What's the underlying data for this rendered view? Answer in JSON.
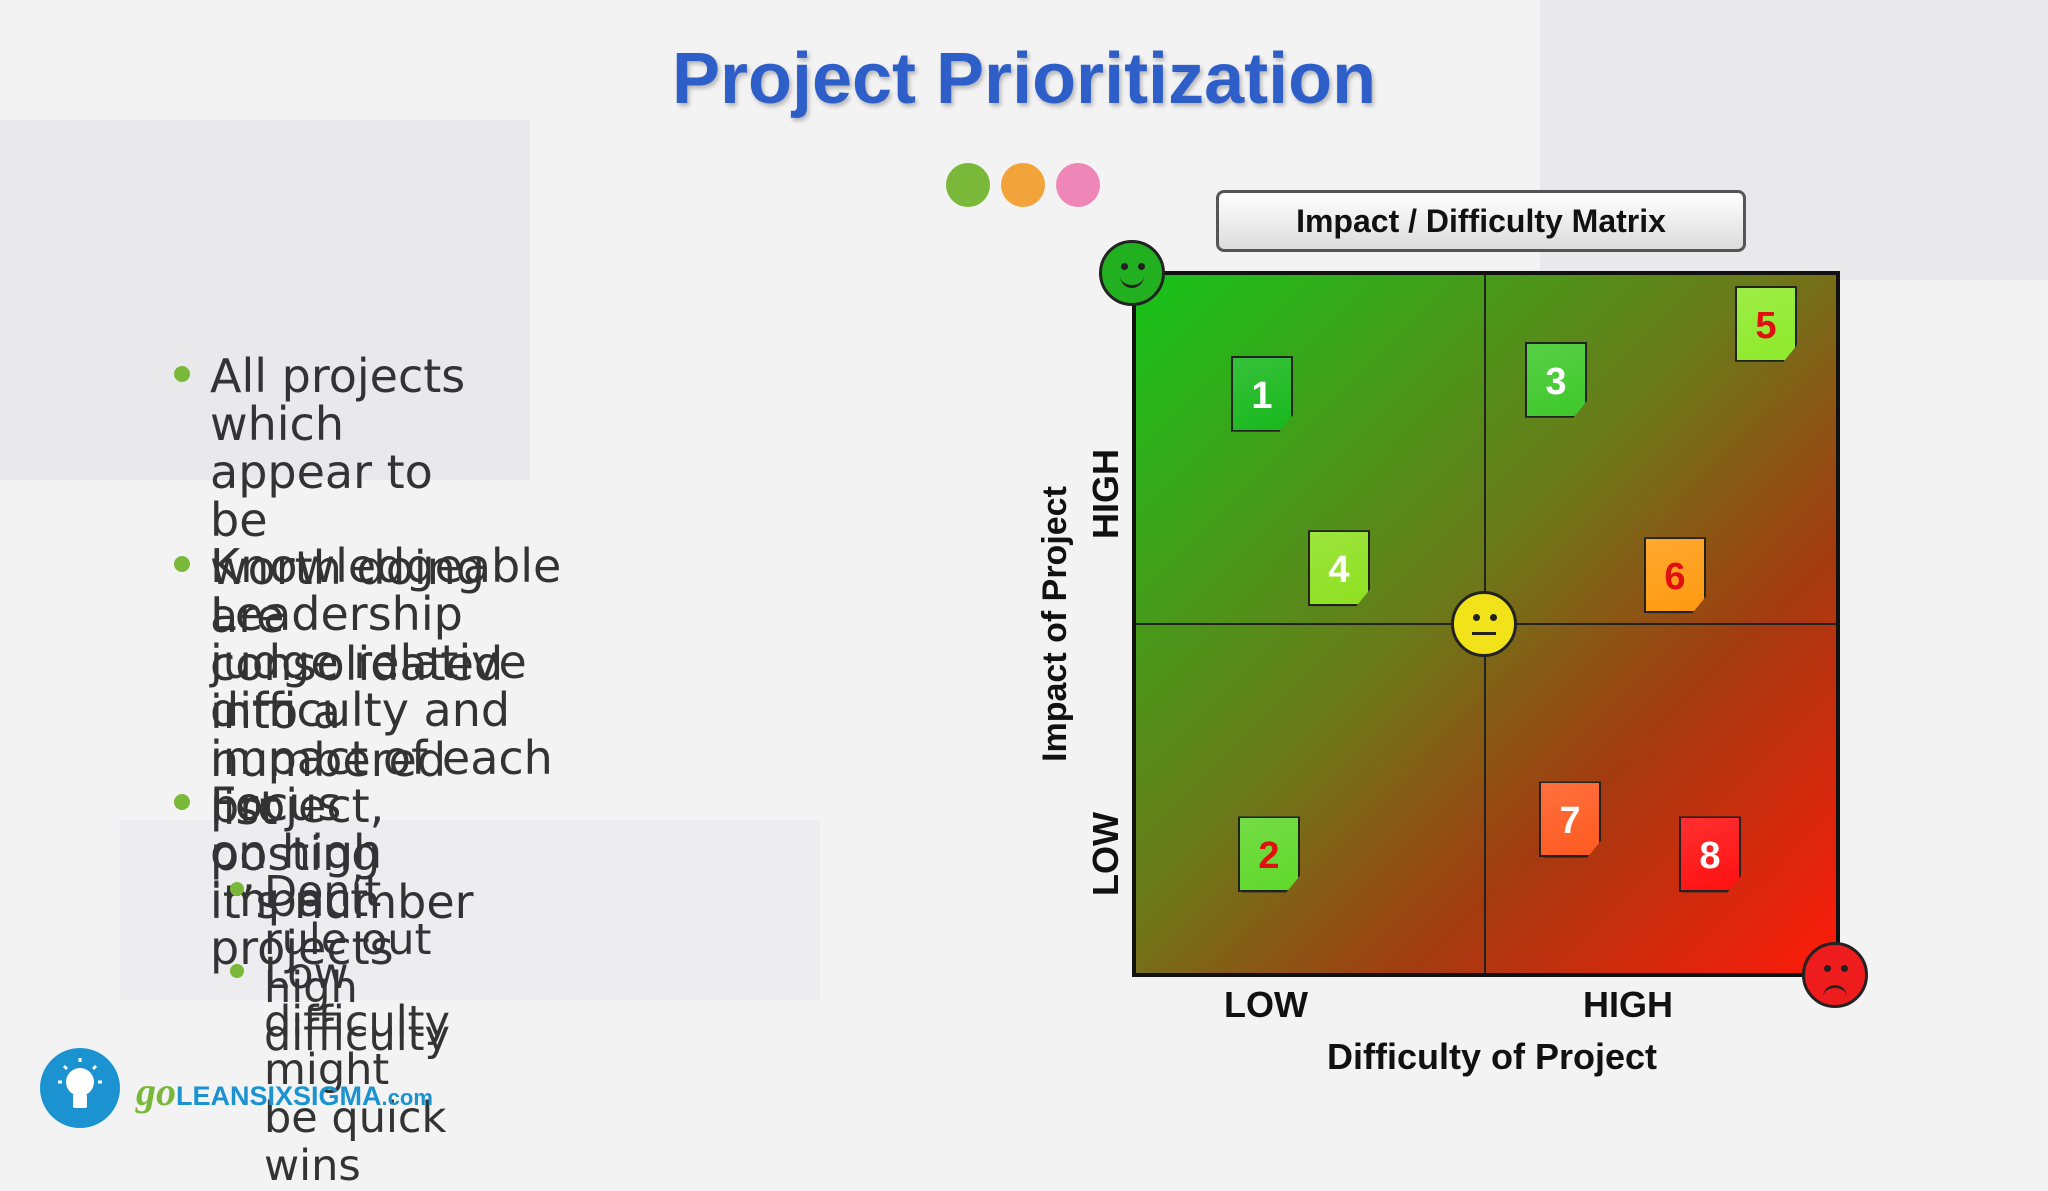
{
  "slide": {
    "title": "Project Prioritization",
    "dot_colors": [
      "#7ab839",
      "#f2a33a",
      "#ee86b8"
    ]
  },
  "bullets": [
    {
      "level": 1,
      "lines": [
        "All projects which appear to be",
        "worth doing are consolidated",
        "into a numbered list"
      ]
    },
    {
      "level": 1,
      "lines": [
        "Knowledgeable Leadership",
        "judge relative difficulty and",
        "impact of each project, posting",
        "it’s number"
      ]
    },
    {
      "level": 1,
      "lines": [
        "Focus on high impact projects"
      ]
    },
    {
      "level": 2,
      "lines": [
        "Don’t rule out high difficulty"
      ]
    },
    {
      "level": 2,
      "lines": [
        "Low difficulty might be quick",
        "wins"
      ]
    }
  ],
  "matrix": {
    "title": "Impact / Difficulty Matrix",
    "x_axis_label": "Difficulty of Project",
    "y_axis_label": "Impact of Project",
    "x_low": "LOW",
    "x_high": "HIGH",
    "y_low": "LOW",
    "y_high": "HIGH",
    "faces": [
      "happy-face",
      "neutral-face",
      "sad-face"
    ],
    "projects": [
      {
        "label": "1",
        "difficulty": 0.18,
        "impact": 0.83,
        "note_color": "#18b81c",
        "text_color": "#ffffff"
      },
      {
        "label": "2",
        "difficulty": 0.19,
        "impact": 0.17,
        "note_color": "#5fd82a",
        "text_color": "#e01010"
      },
      {
        "label": "3",
        "difficulty": 0.6,
        "impact": 0.85,
        "note_color": "#3ec82a",
        "text_color": "#ffffff"
      },
      {
        "label": "4",
        "difficulty": 0.29,
        "impact": 0.58,
        "note_color": "#8ee020",
        "text_color": "#ffffff"
      },
      {
        "label": "5",
        "difficulty": 0.9,
        "impact": 0.93,
        "note_color": "#8eea2a",
        "text_color": "#e01010"
      },
      {
        "label": "6",
        "difficulty": 0.77,
        "impact": 0.57,
        "note_color": "#ff9a10",
        "text_color": "#e01010"
      },
      {
        "label": "7",
        "difficulty": 0.62,
        "impact": 0.22,
        "note_color": "#ff5a20",
        "text_color": "#ffffff"
      },
      {
        "label": "8",
        "difficulty": 0.82,
        "impact": 0.17,
        "note_color": "#ff1010",
        "text_color": "#ffffff"
      }
    ]
  },
  "logo": {
    "part_go": "go",
    "part_brand": "LEANSIXSIGMA",
    "part_domain": ".com",
    "go_color": "#7ab839",
    "brand_color": "#1b93d1"
  }
}
